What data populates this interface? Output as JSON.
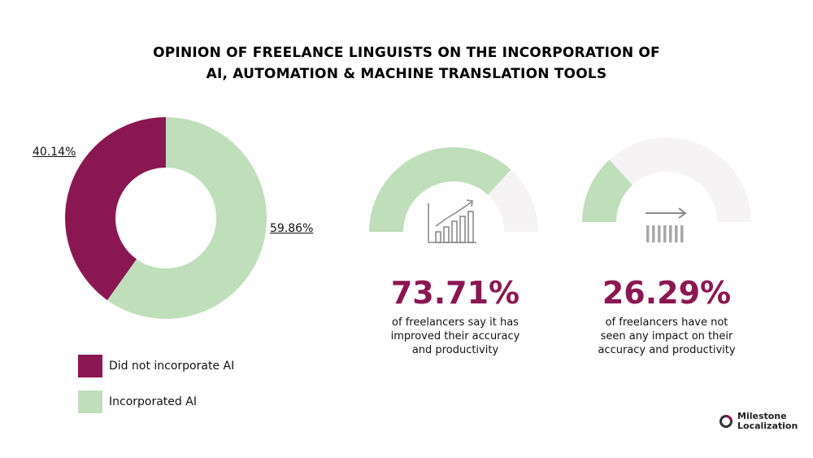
{
  "colors": {
    "did_not": "#8b1752",
    "incorporated": "#bfdfba",
    "gauge_track": "#f6f3f4",
    "accent_text": "#8b1752",
    "icon_gray": "#8a8a8a"
  },
  "chart_data": [
    {
      "type": "pie",
      "style": "donut",
      "title_lines": [
        "OPINION OF FREELANCE LINGUISTS ON THE INCORPORATION OF",
        "AI, AUTOMATION & MACHINE TRANSLATION TOOLS"
      ],
      "slices": [
        {
          "name": "Did not incorporate AI",
          "value": 40.14,
          "label": "40.14%"
        },
        {
          "name": "Incorporated AI",
          "value": 59.86,
          "label": "59.86%"
        }
      ],
      "legend_position": "bottom-left"
    },
    {
      "type": "pie",
      "style": "semicircle-gauge",
      "value": 73.71,
      "label": "73.71%",
      "description": [
        "of freelancers say it has",
        "improved their accuracy",
        "and productivity"
      ],
      "icon": "growth-bar-chart-icon"
    },
    {
      "type": "pie",
      "style": "semicircle-gauge",
      "value": 26.29,
      "label": "26.29%",
      "description": [
        "of freelancers have not",
        "seen any impact on their",
        "accuracy and productivity"
      ],
      "icon": "flat-arrow-bars-icon"
    }
  ],
  "logo": {
    "line1": "Milestone",
    "line2": "Localization",
    "icon": "milestone-ring-icon"
  }
}
